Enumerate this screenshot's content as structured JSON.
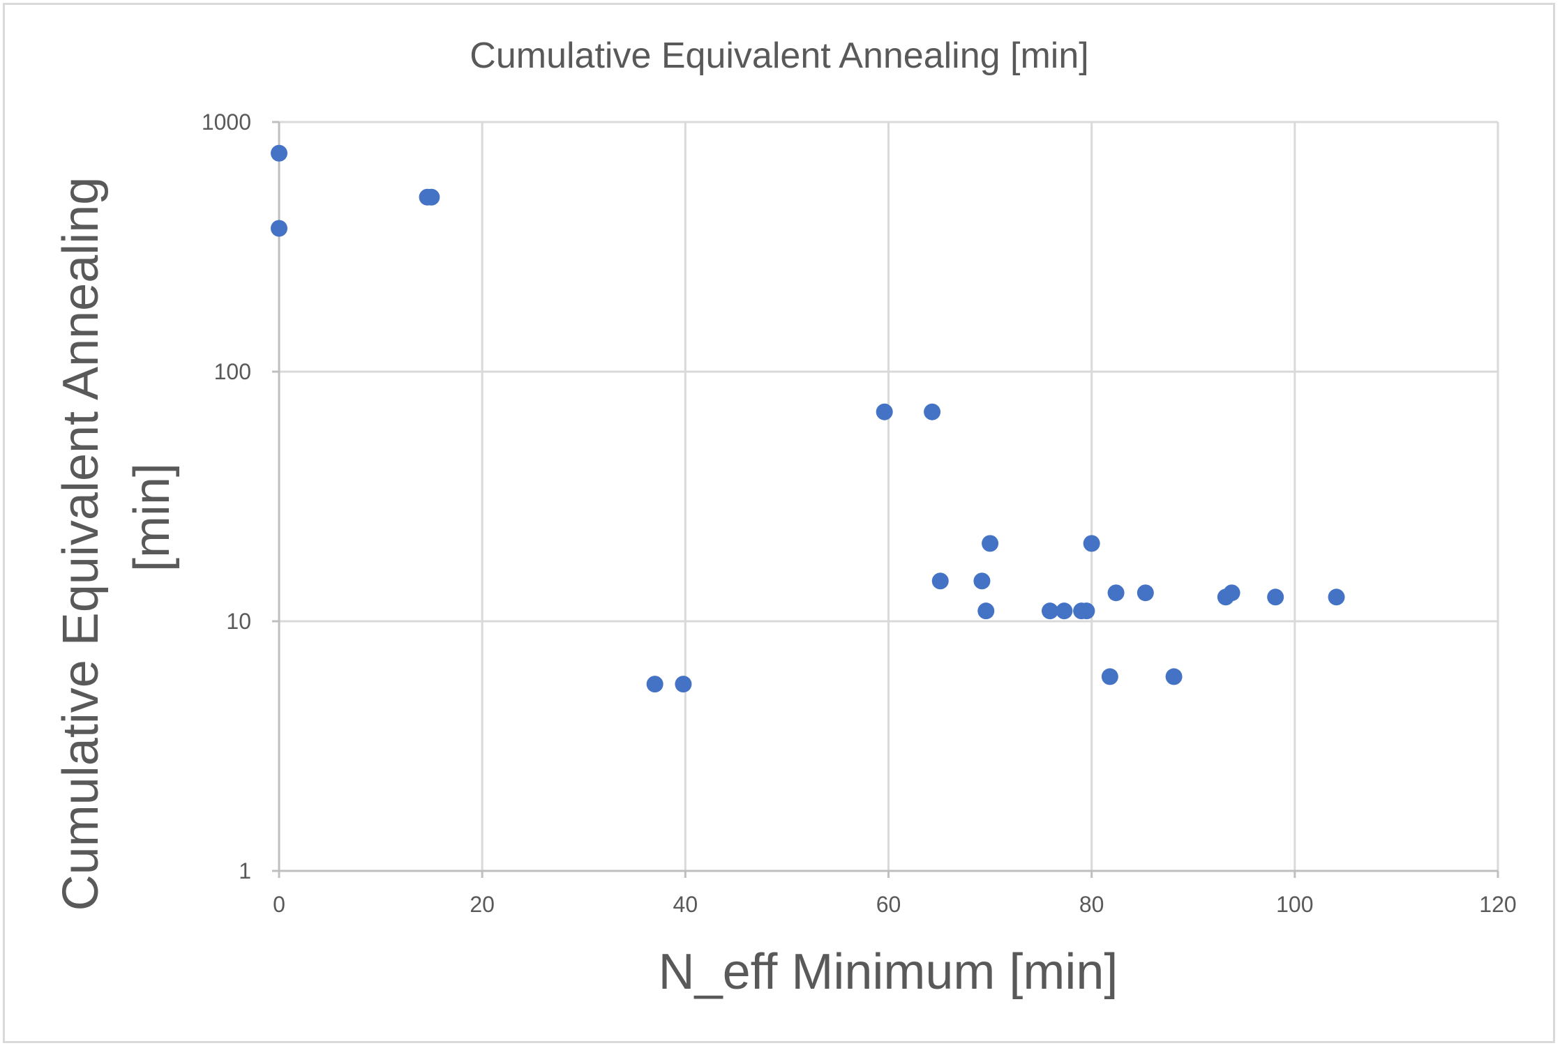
{
  "chart_data": {
    "type": "scatter",
    "title": "Cumulative Equivalent Annealing [min]",
    "xlabel": "N_eff Minimum [min]",
    "ylabel_lines": [
      "Cumulative Equivalent Annealing",
      "[min]"
    ],
    "xlim": [
      0,
      120
    ],
    "ylim": [
      1,
      1000
    ],
    "yscale": "log",
    "x_ticks": [
      0,
      20,
      40,
      60,
      80,
      100,
      120
    ],
    "x_tick_labels": [
      "0",
      "20",
      "40",
      "60",
      "80",
      "100",
      "120"
    ],
    "y_ticks": [
      1,
      10,
      100,
      1000
    ],
    "y_tick_labels": [
      "1",
      "10",
      "100",
      "1000"
    ],
    "grid": true,
    "marker_color": "#4472c4",
    "series": [
      {
        "points": [
          {
            "x": 0,
            "y": 750
          },
          {
            "x": 0,
            "y": 375
          },
          {
            "x": 14.6,
            "y": 500
          },
          {
            "x": 15.0,
            "y": 500
          },
          {
            "x": 37.0,
            "y": 5.6
          },
          {
            "x": 39.8,
            "y": 5.6
          },
          {
            "x": 59.6,
            "y": 69
          },
          {
            "x": 64.3,
            "y": 69
          },
          {
            "x": 65.1,
            "y": 14.5
          },
          {
            "x": 69.2,
            "y": 14.5
          },
          {
            "x": 69.6,
            "y": 11
          },
          {
            "x": 70.0,
            "y": 20.5
          },
          {
            "x": 75.9,
            "y": 11
          },
          {
            "x": 77.3,
            "y": 11
          },
          {
            "x": 79.0,
            "y": 11
          },
          {
            "x": 79.5,
            "y": 11
          },
          {
            "x": 80.0,
            "y": 20.5
          },
          {
            "x": 81.8,
            "y": 6
          },
          {
            "x": 82.4,
            "y": 13
          },
          {
            "x": 85.3,
            "y": 13
          },
          {
            "x": 88.1,
            "y": 6
          },
          {
            "x": 93.2,
            "y": 12.5
          },
          {
            "x": 93.8,
            "y": 13
          },
          {
            "x": 98.1,
            "y": 12.5
          },
          {
            "x": 104.1,
            "y": 12.5
          }
        ]
      }
    ]
  }
}
